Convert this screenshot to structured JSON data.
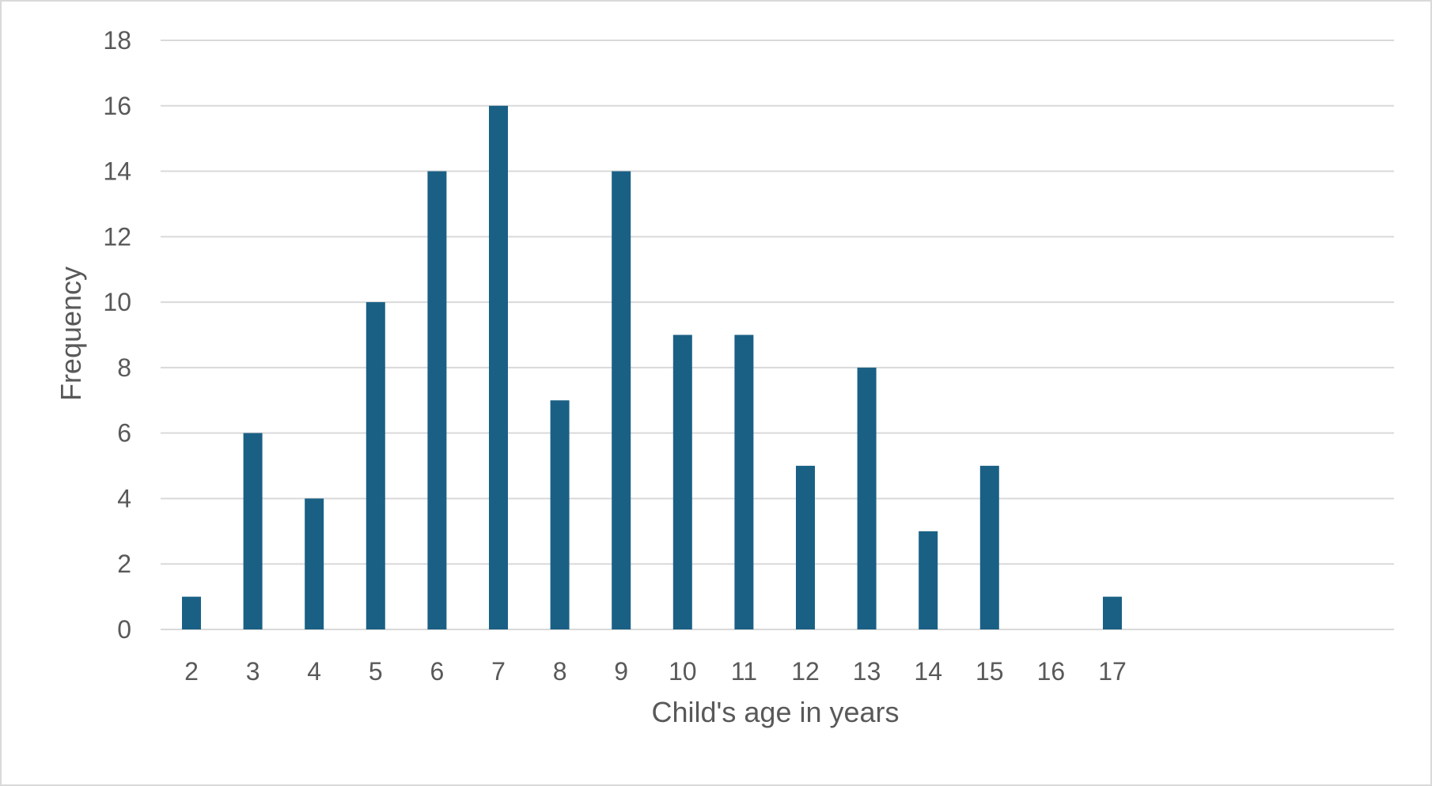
{
  "chart_data": {
    "type": "bar",
    "title": "",
    "xlabel": "Child's age in years",
    "ylabel": "Frequency",
    "categories": [
      "2",
      "3",
      "4",
      "5",
      "6",
      "7",
      "8",
      "9",
      "10",
      "11",
      "12",
      "13",
      "14",
      "15",
      "16",
      "17"
    ],
    "values": [
      1,
      6,
      4,
      10,
      14,
      16,
      7,
      14,
      9,
      9,
      5,
      8,
      3,
      5,
      0,
      1
    ],
    "ylim": [
      0,
      18
    ],
    "yticks": [
      0,
      2,
      4,
      6,
      8,
      10,
      12,
      14,
      16,
      18
    ],
    "grid": true,
    "legend": "none",
    "bar_color": "#1a6085",
    "grid_color": "#d9d9d9",
    "text_color": "#595959"
  }
}
